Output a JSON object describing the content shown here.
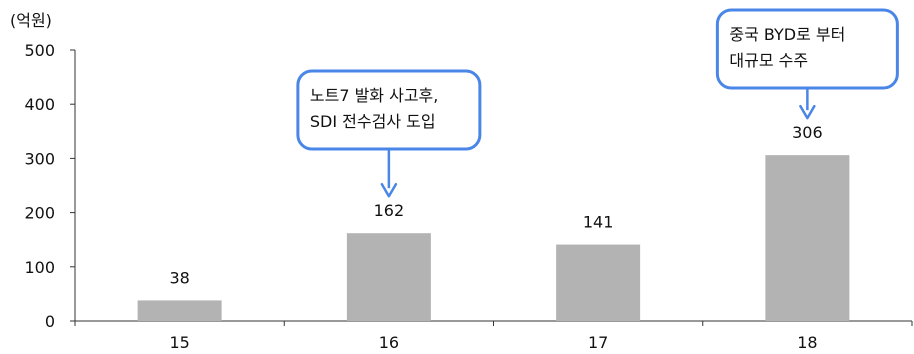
{
  "chart_data": {
    "type": "bar",
    "title": "",
    "xlabel": "",
    "ylabel": "(억원)",
    "categories": [
      "15",
      "16",
      "17",
      "18"
    ],
    "values": [
      38,
      162,
      141,
      306
    ],
    "ylim": [
      0,
      500
    ],
    "yticks": [
      0,
      100,
      200,
      300,
      400,
      500
    ],
    "grid": false,
    "legend": "none",
    "bar_color": "#b3b3b3",
    "annotations": [
      {
        "category": "16",
        "lines": [
          "노트7 발화 사고후,",
          "SDI 전수검사 도입"
        ]
      },
      {
        "category": "18",
        "lines": [
          "중국 BYD로 부터",
          "대규모 수주"
        ]
      }
    ],
    "annotation_border_color": "#4a86e8",
    "arrow_color": "#4a86e8"
  }
}
